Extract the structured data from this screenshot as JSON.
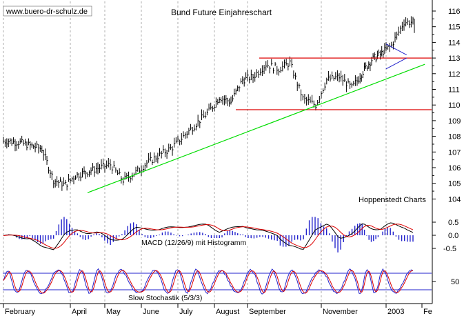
{
  "watermark": "www.buero-dr-schulz.de",
  "title": "Bund Future Einjahreschart",
  "source_label": "Hoppenstedt Charts",
  "colors": {
    "background": "#ffffff",
    "price_bars": "#000000",
    "trendline": "#00dd00",
    "support_resistance": "#dd0000",
    "macd_histogram": "#2222cc",
    "macd_line": "#000000",
    "macd_signal": "#dd0000",
    "stoch_k": "#2222cc",
    "stoch_d": "#dd0000",
    "gridline": "#999999"
  },
  "chart_data": [
    {
      "type": "ohlc",
      "name": "price",
      "title": "Bund Future Einjahreschart",
      "x_axis_months": [
        "February",
        "April",
        "May",
        "June",
        "July",
        "August",
        "September",
        "November",
        "2003",
        "Fe"
      ],
      "y_ticks": [
        104,
        105,
        106,
        107,
        108,
        109,
        110,
        111,
        112,
        113,
        114,
        115,
        116
      ],
      "ylim": [
        103.5,
        116.5
      ],
      "grid": "vertical dotted at month starts",
      "approx_close_path": [
        {
          "x": "early Feb",
          "y": 107.7
        },
        {
          "x": "mid Feb",
          "y": 107.6
        },
        {
          "x": "early Mar",
          "y": 107.2
        },
        {
          "x": "mid Mar",
          "y": 105.2
        },
        {
          "x": "late Mar",
          "y": 104.9
        },
        {
          "x": "early Apr",
          "y": 105.5
        },
        {
          "x": "late Apr",
          "y": 106.0
        },
        {
          "x": "early May",
          "y": 106.2
        },
        {
          "x": "mid May",
          "y": 105.2
        },
        {
          "x": "late May",
          "y": 105.7
        },
        {
          "x": "early Jun",
          "y": 106.3
        },
        {
          "x": "late Jun",
          "y": 107.3
        },
        {
          "x": "early Jul",
          "y": 108.0
        },
        {
          "x": "mid Jul",
          "y": 108.8
        },
        {
          "x": "late Jul",
          "y": 109.6
        },
        {
          "x": "early Aug",
          "y": 110.5
        },
        {
          "x": "mid Aug",
          "y": 110.2
        },
        {
          "x": "late Aug",
          "y": 111.6
        },
        {
          "x": "early Sep",
          "y": 111.8
        },
        {
          "x": "mid Sep",
          "y": 112.6
        },
        {
          "x": "late Sep",
          "y": 112.3
        },
        {
          "x": "early Oct",
          "y": 112.7
        },
        {
          "x": "mid Oct",
          "y": 110.4
        },
        {
          "x": "late Oct",
          "y": 110.0
        },
        {
          "x": "early Nov",
          "y": 111.6
        },
        {
          "x": "mid Nov",
          "y": 111.8
        },
        {
          "x": "late Nov",
          "y": 111.1
        },
        {
          "x": "early Dec",
          "y": 112.0
        },
        {
          "x": "mid Dec",
          "y": 112.9
        },
        {
          "x": "late Dec",
          "y": 113.3
        },
        {
          "x": "early Jan",
          "y": 113.8
        },
        {
          "x": "mid Jan",
          "y": 115.3
        }
      ],
      "annotations": [
        {
          "kind": "support_line",
          "y": 109.7
        },
        {
          "kind": "resistance_line",
          "y": 113.0
        },
        {
          "kind": "uptrend_line",
          "from": {
            "x": "mid Apr",
            "y": 104.4
          },
          "to": {
            "x": "late Jan",
            "y": 112.6
          }
        },
        {
          "kind": "triangle_pattern",
          "near": "early Jan"
        }
      ]
    },
    {
      "type": "bar+line",
      "name": "macd",
      "label": "MACD (12/26/9) mit Histogramm",
      "y_ticks": [
        0.5,
        0.0,
        -0.5
      ],
      "ylim": [
        -0.75,
        0.75
      ],
      "histogram_color": "#2222cc",
      "line_colors": [
        "#000000",
        "#dd0000"
      ]
    },
    {
      "type": "line",
      "name": "stochastic",
      "label": "Slow Stochastik (5/3/3)",
      "y_ticks": [
        50
      ],
      "ylim": [
        0,
        100
      ],
      "levels": [
        80,
        20
      ],
      "line_colors": [
        "#2222cc",
        "#dd0000"
      ]
    }
  ]
}
